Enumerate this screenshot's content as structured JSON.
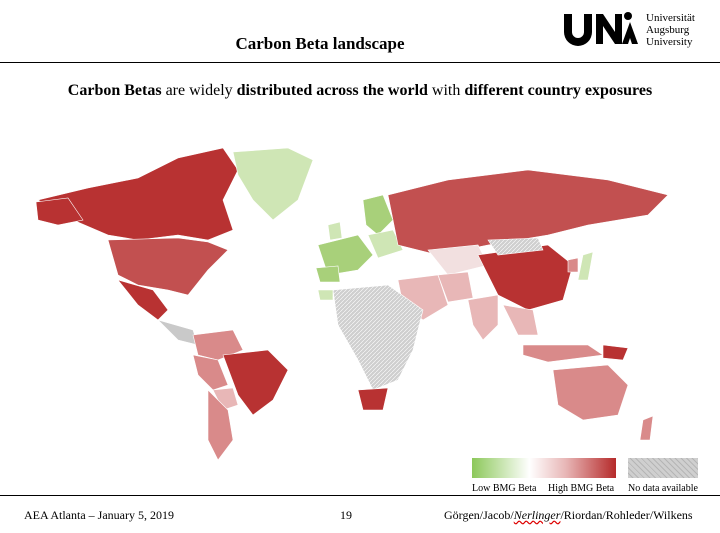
{
  "header": {
    "title": "Carbon Beta landscape",
    "logo_lines": [
      "Universität",
      "Augsburg",
      "University"
    ]
  },
  "subtitle": {
    "parts": [
      {
        "text": "Carbon Betas",
        "bold": true
      },
      {
        "text": " are widely ",
        "bold": false
      },
      {
        "text": "distributed across the world",
        "bold": true
      },
      {
        "text": " with ",
        "bold": false
      },
      {
        "text": "different country exposures",
        "bold": true
      }
    ]
  },
  "legend": {
    "low_label": "Low BMG Beta",
    "high_label": "High BMG Beta",
    "na_label": "No data available",
    "low_color": "#8cc85a",
    "high_color": "#b52a2a",
    "na_color": "#c8c8c8"
  },
  "colors": {
    "high": "#b83232",
    "mid_high": "#c25050",
    "mid": "#d98a8a",
    "light_red": "#e8b7b7",
    "pale": "#f2e0e0",
    "low_green": "#a8d07a",
    "pale_green": "#cfe6b5",
    "na": "#c9c9c9"
  },
  "footer": {
    "left": "AEA Atlanta – January 5, 2019",
    "page": "19",
    "authors_before": "Görgen/Jacob/",
    "authors_italic": "Nerlinger",
    "authors_after": "/Riordan/Rohleder/Wilkens"
  }
}
